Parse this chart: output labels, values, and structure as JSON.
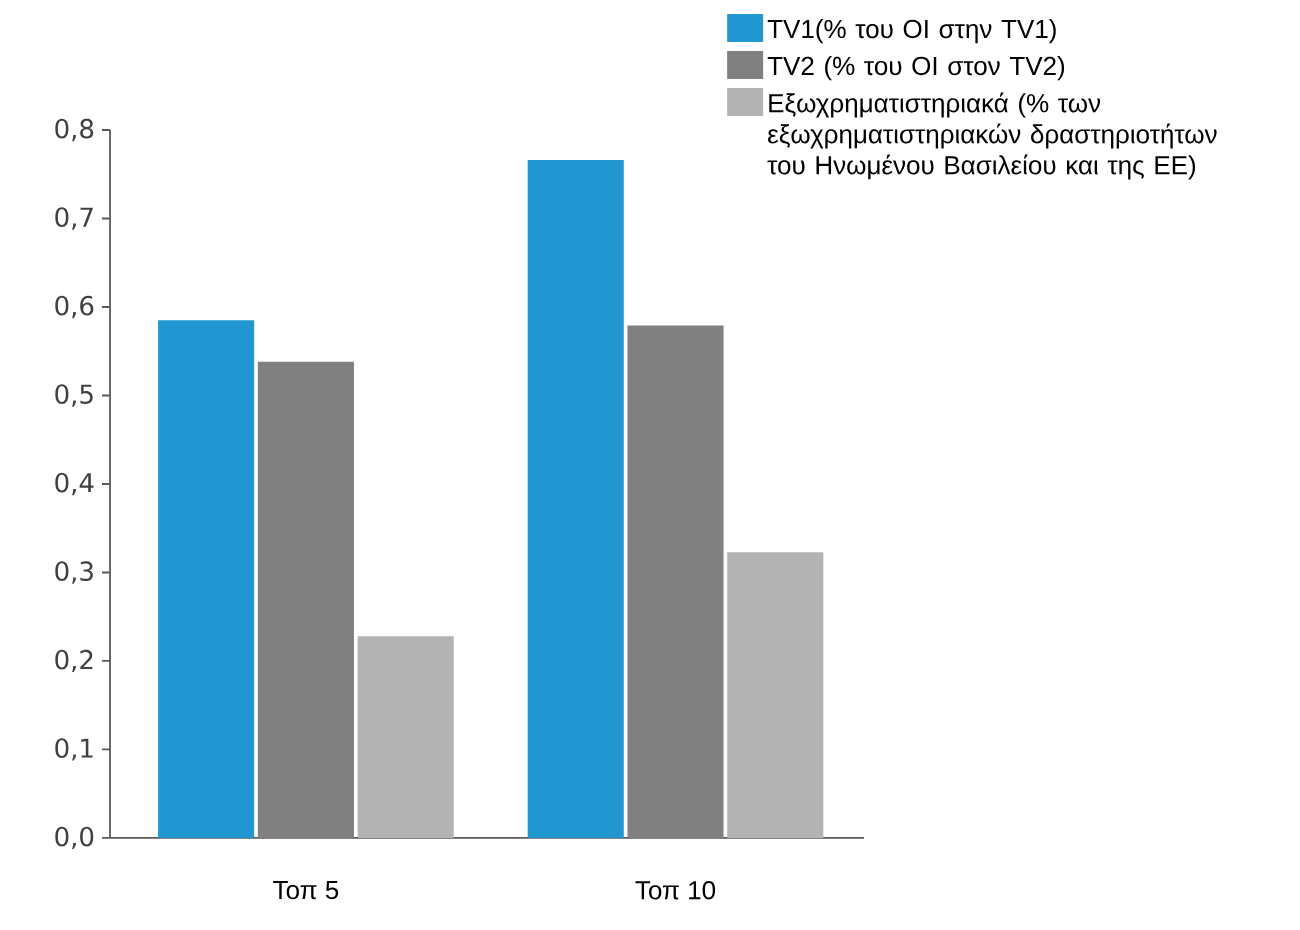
{
  "chart_data": {
    "type": "bar",
    "categories": [
      "Τοπ 5",
      "Τοπ 10"
    ],
    "series": [
      {
        "name": "TV1(% του ΟΙ στην TV1)",
        "color": "#2196d0",
        "values": [
          0.585,
          0.766
        ]
      },
      {
        "name": "TV2 (% του ΟΙ στον TV2)",
        "color": "#808080",
        "values": [
          0.538,
          0.579
        ]
      },
      {
        "name": "Εξωχρηματιστηριακά (% των εξωχρηματιστηριακών δραστηριοτήτων του Ηνωμένου Βασιλείου και της ΕΕ)",
        "color": "#b3b3b3",
        "values": [
          0.228,
          0.323
        ]
      }
    ],
    "ylim": [
      0,
      0.8
    ],
    "yticks": [
      {
        "value": 0,
        "label": "0,0"
      },
      {
        "value": 0.1,
        "label": "0,1"
      },
      {
        "value": 0.2,
        "label": "0,2"
      },
      {
        "value": 0.3,
        "label": "0,3"
      },
      {
        "value": 0.4,
        "label": "0,4"
      },
      {
        "value": 0.5,
        "label": "0,5"
      },
      {
        "value": 0.6,
        "label": "0,6"
      },
      {
        "value": 0.7,
        "label": "0,7"
      },
      {
        "value": 0.8,
        "label": "0,8"
      }
    ],
    "legend": "top right"
  }
}
